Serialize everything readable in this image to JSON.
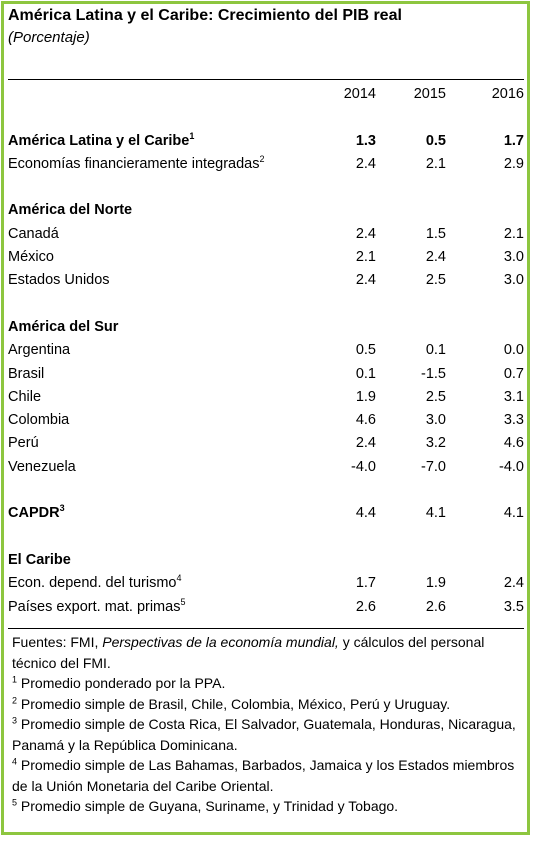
{
  "title": "América Latina y el Caribe: Crecimiento del PIB real",
  "subtitle": "(Porcentaje)",
  "years": [
    "2014",
    "2015",
    "2016"
  ],
  "rows": [
    {
      "label": "América Latina y el Caribe",
      "sup": "1",
      "values": [
        "1.3",
        "0.5",
        "1.7"
      ]
    },
    {
      "label": "Economías financieramente integradas",
      "sup": "2",
      "values": [
        "2.4",
        "2.1",
        "2.9"
      ]
    },
    {
      "label": "América del Norte"
    },
    {
      "label": "Canadá",
      "values": [
        "2.4",
        "1.5",
        "2.1"
      ]
    },
    {
      "label": "México",
      "values": [
        "2.1",
        "2.4",
        "3.0"
      ]
    },
    {
      "label": "Estados Unidos",
      "values": [
        "2.4",
        "2.5",
        "3.0"
      ]
    },
    {
      "label": "América del Sur"
    },
    {
      "label": "Argentina",
      "values": [
        "0.5",
        "0.1",
        "0.0"
      ]
    },
    {
      "label": "Brasil",
      "values": [
        "0.1",
        "-1.5",
        "0.7"
      ]
    },
    {
      "label": "Chile",
      "values": [
        "1.9",
        "2.5",
        "3.1"
      ]
    },
    {
      "label": "Colombia",
      "values": [
        "4.6",
        "3.0",
        "3.3"
      ]
    },
    {
      "label": "Perú",
      "values": [
        "2.4",
        "3.2",
        "4.6"
      ]
    },
    {
      "label": "Venezuela",
      "values": [
        "-4.0",
        "-7.0",
        "-4.0"
      ]
    },
    {
      "label": "CAPDR",
      "sup": "3",
      "values": [
        "4.4",
        "4.1",
        "4.1"
      ]
    },
    {
      "label": "El Caribe"
    },
    {
      "label": "Econ. depend. del turismo",
      "sup": "4",
      "values": [
        "1.7",
        "1.9",
        "2.4"
      ]
    },
    {
      "label": "Países export. mat. primas",
      "sup": "5",
      "values": [
        "2.6",
        "2.6",
        "3.5"
      ]
    }
  ],
  "notes": {
    "source_prefix": "Fuentes: FMI, ",
    "source_italic": "Perspectivas de la economía mundial,",
    "source_suffix": " y cálculos del personal técnico del FMI.",
    "n1_mark": "1",
    "n1_text": " Promedio ponderado por la PPA.",
    "n2_mark": "2",
    "n2_text": " Promedio simple de Brasil, Chile, Colombia, México, Perú y Uruguay.",
    "n3_mark": "3",
    "n3_text": " Promedio simple de Costa Rica, El Salvador, Guatemala, Honduras, Nicaragua, Panamá y la República Dominicana.",
    "n4_mark": "4",
    "n4_text": " Promedio simple de Las Bahamas, Barbados, Jamaica y los Estados miembros de la Unión Monetaria del Caribe Oriental.",
    "n5_mark": "5",
    "n5_text": " Promedio simple de Guyana, Suriname, y Trinidad y Tobago."
  },
  "colors": {
    "border": "#8dc63f",
    "text": "#000000"
  }
}
